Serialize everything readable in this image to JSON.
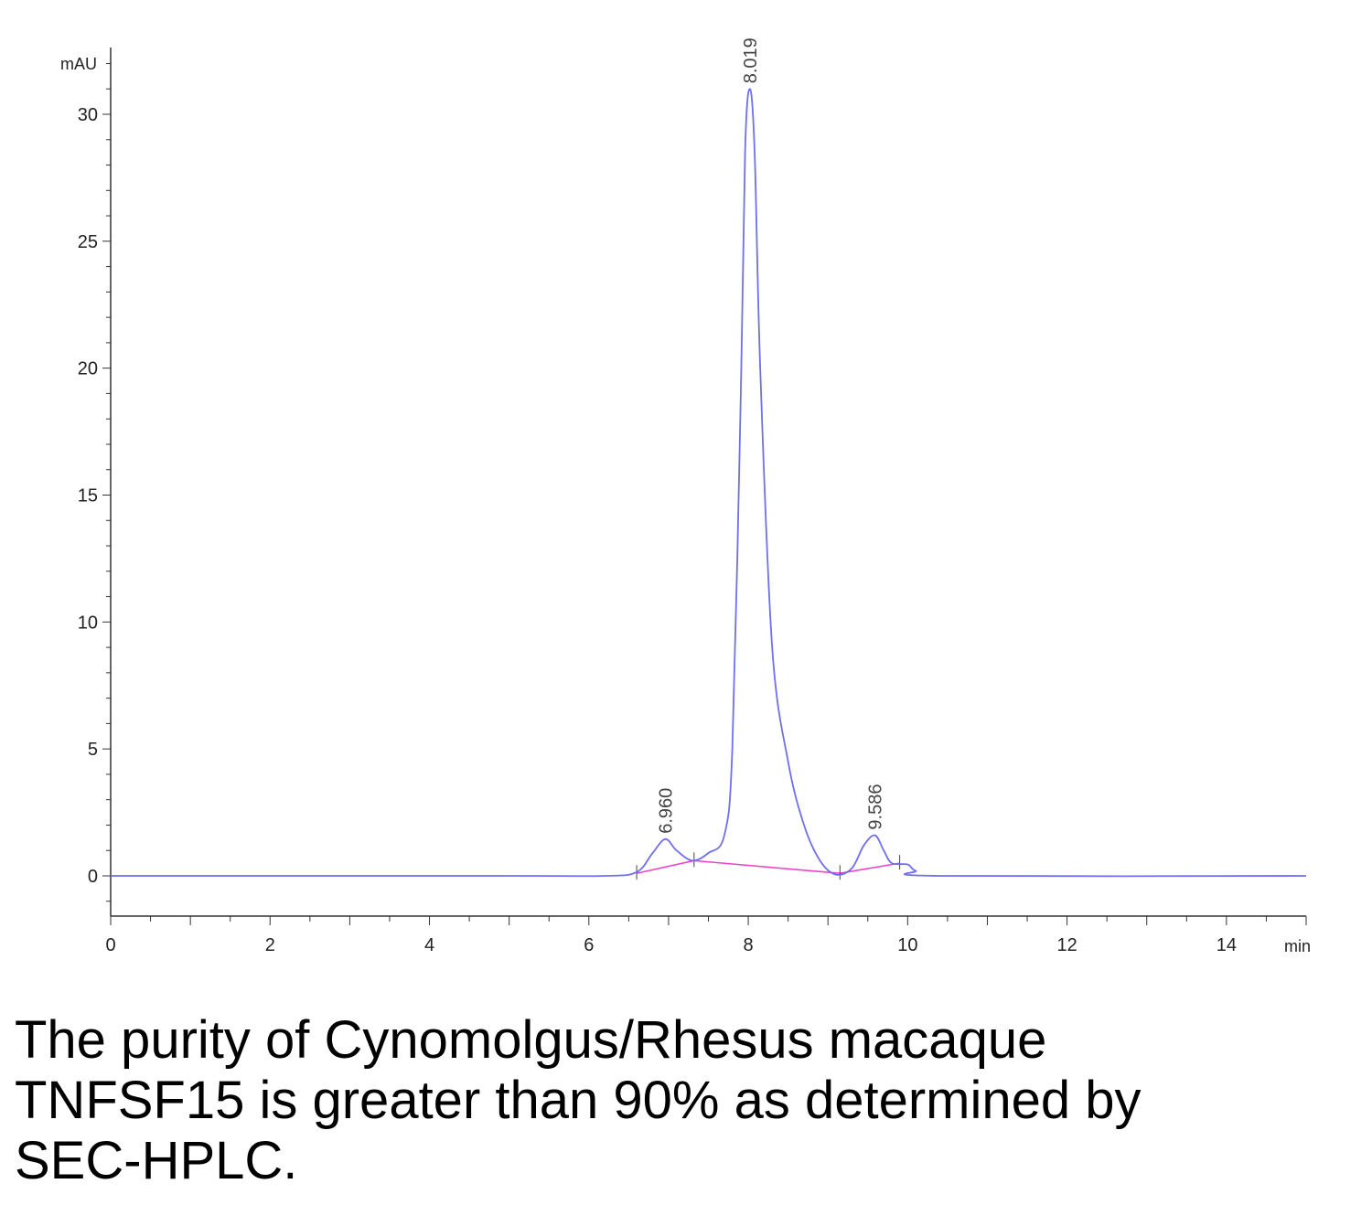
{
  "chart_data": {
    "type": "line",
    "title": "",
    "xlabel": "min",
    "ylabel": "mAU",
    "xlim": [
      0,
      15
    ],
    "ylim": [
      -1.6,
      32
    ],
    "x_ticks": [
      "0",
      "2",
      "4",
      "6",
      "8",
      "10",
      "12",
      "14"
    ],
    "y_ticks": [
      "0",
      "5",
      "10",
      "15",
      "20",
      "25",
      "30"
    ],
    "grid": false,
    "legend": "none",
    "colors": {
      "signal": "#6f6ff0",
      "baseline": "#ee44cc",
      "axis": "#333333"
    },
    "peaks": [
      {
        "label": "6.960",
        "x": 6.96,
        "y": 1.45
      },
      {
        "label": "8.019",
        "x": 8.02,
        "y": 31.0
      },
      {
        "label": "9.586",
        "x": 9.59,
        "y": 1.6
      }
    ],
    "series": [
      {
        "x": [
          0,
          5.0,
          6.2,
          6.6,
          6.8,
          6.96,
          7.1,
          7.3,
          7.5,
          7.7,
          7.8,
          7.9,
          7.96,
          8.02,
          8.08,
          8.15,
          8.3,
          8.5,
          8.7,
          8.9,
          9.1,
          9.3,
          9.45,
          9.59,
          9.7,
          9.8,
          10.0,
          10.1,
          10.4,
          15.0
        ],
        "values": [
          0,
          0,
          0,
          0.15,
          0.9,
          1.45,
          1.0,
          0.6,
          0.9,
          1.6,
          5.0,
          18.0,
          28.5,
          31.0,
          28.5,
          20.0,
          9.0,
          4.5,
          2.0,
          0.6,
          0.05,
          0.3,
          1.2,
          1.6,
          1.0,
          0.5,
          0.45,
          0.2,
          0,
          0
        ]
      }
    ],
    "baseline_segments": [
      {
        "x": [
          6.6,
          7.32,
          9.15,
          9.9
        ],
        "values": [
          0.1,
          0.6,
          0.1,
          0.5
        ]
      }
    ]
  },
  "caption": "The purity of Cynomolgus/Rhesus macaque TNFSF15 is greater than 90% as determined by SEC-HPLC."
}
